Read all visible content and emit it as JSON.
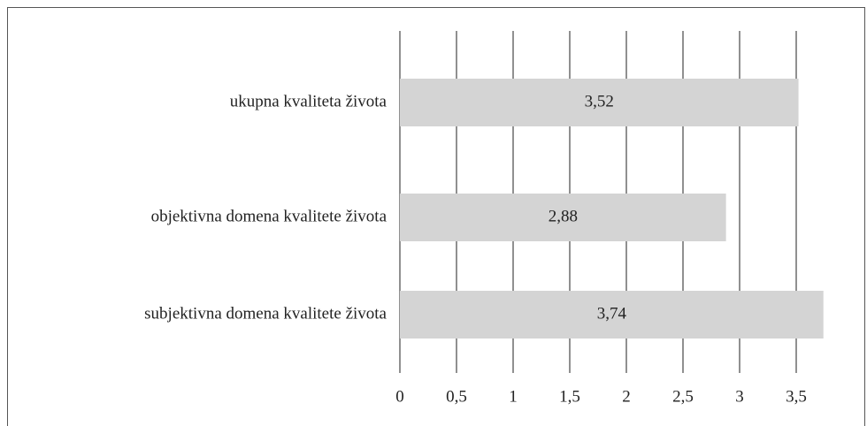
{
  "chart_data": {
    "type": "barh",
    "categories": [
      "ukupna kvaliteta života",
      "objektivna domena kvalitete života",
      "subjektivna domena kvalitete života"
    ],
    "values": [
      3.52,
      2.88,
      3.74
    ],
    "value_labels": [
      "3,52",
      "2,88",
      "3,74"
    ],
    "color": "#d4d4d4",
    "xlim": [
      0,
      3.8
    ],
    "xticks": [
      0,
      {
        "value": 0.5,
        "label": "0,5"
      },
      1,
      {
        "value": 1.5,
        "label": "1,5"
      },
      2,
      {
        "value": 2.5,
        "label": "2,5"
      },
      3,
      {
        "value": 3.5,
        "label": "3,5"
      }
    ],
    "grid": true
  }
}
